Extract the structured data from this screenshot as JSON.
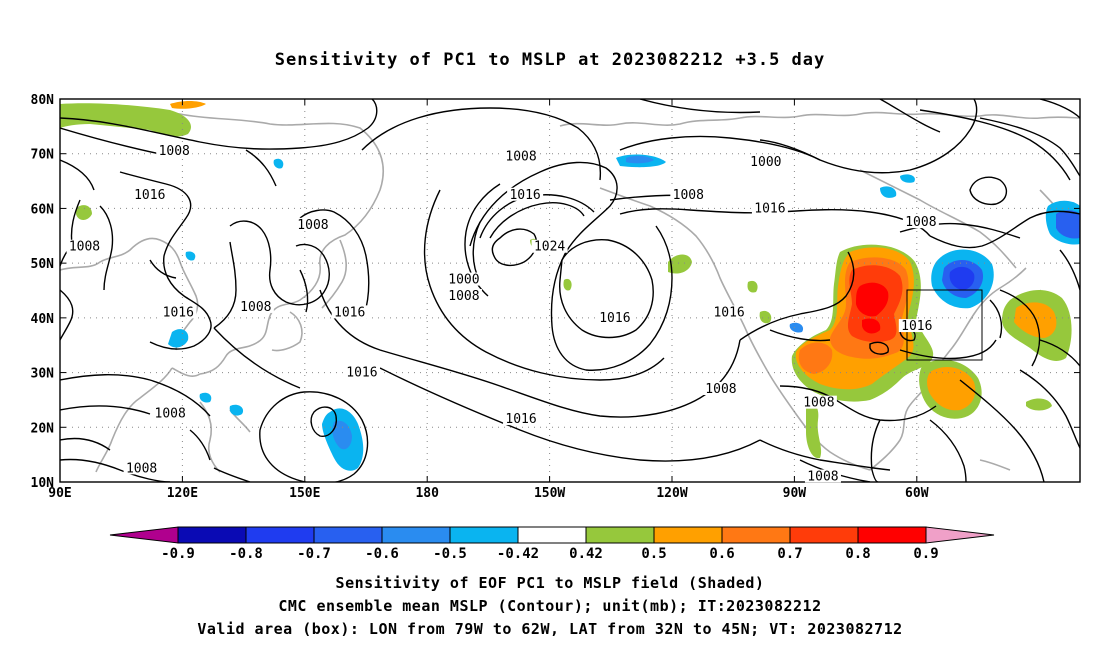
{
  "title": "Sensitivity of PC1 to MSLP at 2023082212 +3.5 day",
  "lat_labels": [
    "80N",
    "70N",
    "60N",
    "50N",
    "40N",
    "30N",
    "20N",
    "10N"
  ],
  "lon_labels": [
    "90E",
    "120E",
    "150E",
    "180",
    "150W",
    "120W",
    "90W",
    "60W"
  ],
  "contour_labels": [
    {
      "text": "1008",
      "lon": 118,
      "lat": 70.5
    },
    {
      "text": "1016",
      "lon": 112,
      "lat": 62.5
    },
    {
      "text": "1008",
      "lon": 96,
      "lat": 53
    },
    {
      "text": "1008",
      "lon": 152,
      "lat": 57
    },
    {
      "text": "1016",
      "lon": 119,
      "lat": 41
    },
    {
      "text": "1008",
      "lon": 138,
      "lat": 42
    },
    {
      "text": "1016",
      "lon": 161,
      "lat": 41
    },
    {
      "text": "1016",
      "lon": 164,
      "lat": 30
    },
    {
      "text": "1008",
      "lon": 117,
      "lat": 22.5
    },
    {
      "text": "1008",
      "lon": 110,
      "lat": 12.5
    },
    {
      "text": "1008",
      "lon": -157,
      "lat": 69.5
    },
    {
      "text": "1016",
      "lon": -156,
      "lat": 62.5
    },
    {
      "text": "1024",
      "lon": -150,
      "lat": 53
    },
    {
      "text": "1000",
      "lon": -171,
      "lat": 47
    },
    {
      "text": "1008",
      "lon": -171,
      "lat": 44
    },
    {
      "text": "1016",
      "lon": -134,
      "lat": 40
    },
    {
      "text": "1016",
      "lon": -157,
      "lat": 21.5
    },
    {
      "text": "1008",
      "lon": -116,
      "lat": 62.5
    },
    {
      "text": "1016",
      "lon": -96,
      "lat": 60
    },
    {
      "text": "1000",
      "lon": -97,
      "lat": 68.5
    },
    {
      "text": "1008",
      "lon": -59,
      "lat": 57.5
    },
    {
      "text": "1016",
      "lon": -106,
      "lat": 41
    },
    {
      "text": "1016",
      "lon": -60,
      "lat": 38.5
    },
    {
      "text": "1008",
      "lon": -108,
      "lat": 27
    },
    {
      "text": "1008",
      "lon": -84,
      "lat": 24.5
    },
    {
      "text": "1008",
      "lon": -83,
      "lat": 11
    }
  ],
  "colorbar": {
    "labels": [
      "-0.9",
      "-0.8",
      "-0.7",
      "-0.6",
      "-0.5",
      "-0.42",
      "0.42",
      "0.5",
      "0.6",
      "0.7",
      "0.8",
      "0.9"
    ],
    "colors": [
      "#b0008e",
      "#0a0ab4",
      "#1f3cf0",
      "#2860f0",
      "#2a8cf0",
      "#0ab4f0",
      "#ffffff",
      "#96c83c",
      "#ffa000",
      "#ff7814",
      "#ff3c0a",
      "#ff0000",
      "#f0a0c8"
    ]
  },
  "captions": [
    "Sensitivity of EOF PC1 to MSLP field (Shaded)",
    "CMC ensemble mean MSLP (Contour); unit(mb); IT:2023082212",
    "Valid area (box): LON from 79W to 62W, LAT from 32N to 45N; VT: 2023082712"
  ]
}
